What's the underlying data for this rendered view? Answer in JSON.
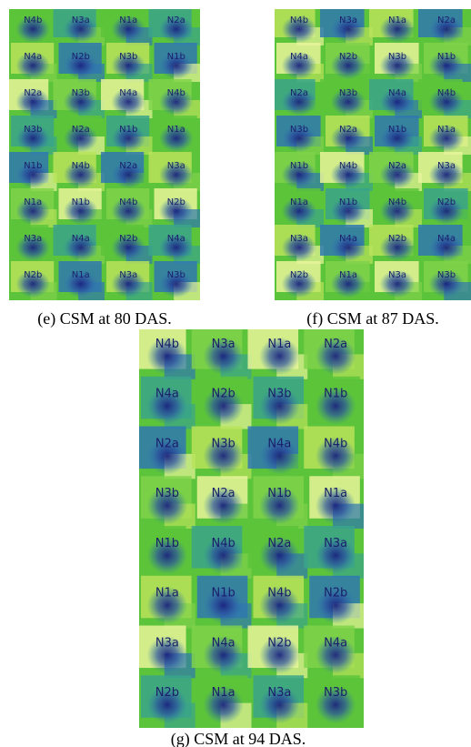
{
  "panels": [
    {
      "caption": "(e) CSM at 80 DAS.",
      "grid": [
        [
          "N4b",
          "N3a",
          "N1a",
          "N2a"
        ],
        [
          "N4a",
          "N2b",
          "N3b",
          "N1b"
        ],
        [
          "N2a",
          "N3b",
          "N4a",
          "N4b"
        ],
        [
          "N3b",
          "N2a",
          "N1b",
          "N1a"
        ],
        [
          "N1b",
          "N4b",
          "N2a",
          "N3a"
        ],
        [
          "N1a",
          "N1b",
          "N4b",
          "N2b"
        ],
        [
          "N3a",
          "N4a",
          "N2b",
          "N4a"
        ],
        [
          "N2b",
          "N1a",
          "N3a",
          "N3b"
        ]
      ]
    },
    {
      "caption": "(f) CSM at 87 DAS.",
      "grid": [
        [
          "N4b",
          "N3a",
          "N1a",
          "N2a"
        ],
        [
          "N4a",
          "N2b",
          "N3b",
          "N1b"
        ],
        [
          "N2a",
          "N3b",
          "N4a",
          "N4b"
        ],
        [
          "N3b",
          "N2a",
          "N1b",
          "N1a"
        ],
        [
          "N1b",
          "N4b",
          "N2a",
          "N3a"
        ],
        [
          "N1a",
          "N1b",
          "N4b",
          "N2b"
        ],
        [
          "N3a",
          "N4a",
          "N2b",
          "N4a"
        ],
        [
          "N2b",
          "N1a",
          "N3a",
          "N3b"
        ]
      ]
    },
    {
      "caption": "(g) CSM at 94 DAS.",
      "grid": [
        [
          "N4b",
          "N3a",
          "N1a",
          "N2a"
        ],
        [
          "N4a",
          "N2b",
          "N3b",
          "N1b"
        ],
        [
          "N2a",
          "N3b",
          "N4a",
          "N4b"
        ],
        [
          "N3b",
          "N2a",
          "N1b",
          "N1a"
        ],
        [
          "N1b",
          "N4b",
          "N2a",
          "N3a"
        ],
        [
          "N1a",
          "N1b",
          "N4b",
          "N2b"
        ],
        [
          "N3a",
          "N4a",
          "N2b",
          "N4a"
        ],
        [
          "N2b",
          "N1a",
          "N3a",
          "N3b"
        ]
      ]
    }
  ]
}
